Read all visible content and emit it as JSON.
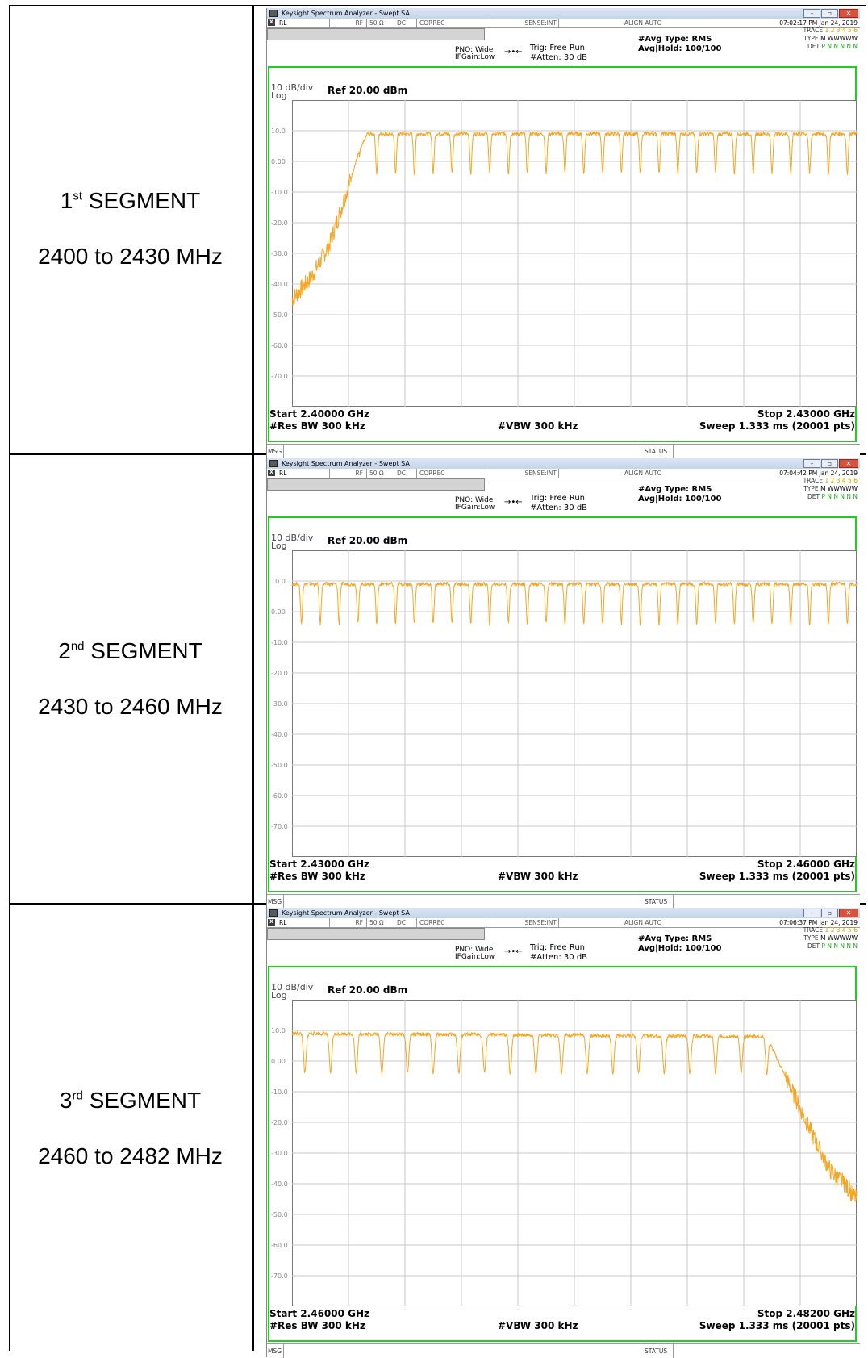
{
  "segments": [
    {
      "label_ordinal": "1",
      "label_suffix": "st",
      "label_word": "SEGMENT",
      "range": "2400 to 2430 MHz",
      "window_title": "Keysight Spectrum Analyzer - Swept SA",
      "status": {
        "rl": "RL",
        "rf": "RF",
        "impedance": "50 Ω",
        "coupling": "DC",
        "correc": "CORREC",
        "sense": "SENSE:INT",
        "align": "ALIGN AUTO",
        "timestamp": "07:02:17 PM Jan 24, 2019"
      },
      "pno": "PNO: Wide",
      "ifgain": "IFGain:Low",
      "trig": "Trig: Free Run",
      "atten": "#Atten: 30 dB",
      "avg_type": "#Avg Type: RMS",
      "avg_hold": "Avg|Hold: 100/100",
      "trace_rows": {
        "trace_label": "TRACE",
        "trace_values": "1 2 3 4 5 6",
        "type_label": "TYPE",
        "type_values": "M WWWWW",
        "det_label": "DET",
        "det_values": "P N N N N N"
      },
      "scale": "10 dB/div",
      "scale_type": "Log",
      "ref_level": "Ref 20.00 dBm",
      "start": "Start 2.40000 GHz",
      "stop": "Stop 2.43000 GHz",
      "rbw": "#Res BW 300 kHz",
      "vbw": "#VBW 300 kHz",
      "sweep": "Sweep  1.333 ms (20001 pts)",
      "msg": "MSG",
      "status_label": "STATUS",
      "chart_data": {
        "type": "line",
        "y_ticks": [
          "10.0",
          "0.00",
          "-10.0",
          "-20.0",
          "-30.0",
          "-40.0",
          "-50.0",
          "-60.0",
          "-70.0"
        ],
        "ylim": [
          -80,
          20
        ],
        "xlim_ghz": [
          2.4,
          2.43
        ],
        "series": [
          {
            "color": "#f5a623",
            "description": "channel comb",
            "x_mhz": [
              2400.0,
              2401.0,
              2402.0,
              2403.0,
              2403.5,
              2404.0,
              2405.0,
              2406.0,
              2407.0,
              2408.0,
              2409.0,
              2410.0,
              2411.0,
              2412.0,
              2413.0,
              2414.0,
              2415.0,
              2416.0,
              2417.0,
              2418.0,
              2419.0,
              2420.0,
              2421.0,
              2422.0,
              2423.0,
              2424.0,
              2425.0,
              2426.0,
              2427.0,
              2428.0,
              2429.0,
              2430.0
            ],
            "y_dbm": [
              -45,
              -38,
              -27,
              -8,
              2,
              9,
              9,
              9,
              9,
              9,
              9,
              9,
              9,
              9,
              9,
              9,
              9,
              9,
              9,
              9,
              9,
              9,
              9,
              9,
              9,
              9,
              9,
              9,
              9,
              9,
              9,
              9
            ],
            "notch_dbm": -4
          }
        ]
      }
    },
    {
      "label_ordinal": "2",
      "label_suffix": "nd",
      "label_word": "SEGMENT",
      "range": "2430 to 2460 MHz",
      "window_title": "Keysight Spectrum Analyzer - Swept SA",
      "status": {
        "rl": "RL",
        "rf": "RF",
        "impedance": "50 Ω",
        "coupling": "DC",
        "correc": "CORREC",
        "sense": "SENSE:INT",
        "align": "ALIGN AUTO",
        "timestamp": "07:04:42 PM Jan 24, 2019"
      },
      "pno": "PNO: Wide",
      "ifgain": "IFGain:Low",
      "trig": "Trig: Free Run",
      "atten": "#Atten: 30 dB",
      "avg_type": "#Avg Type: RMS",
      "avg_hold": "Avg|Hold: 100/100",
      "trace_rows": {
        "trace_label": "TRACE",
        "trace_values": "1 2 3 4 5 6",
        "type_label": "TYPE",
        "type_values": "M WWWWW",
        "det_label": "DET",
        "det_values": "P N N N N N"
      },
      "scale": "10 dB/div",
      "scale_type": "Log",
      "ref_level": "Ref 20.00 dBm",
      "start": "Start 2.43000 GHz",
      "stop": "Stop 2.46000 GHz",
      "rbw": "#Res BW 300 kHz",
      "vbw": "#VBW 300 kHz",
      "sweep": "Sweep  1.333 ms (20001 pts)",
      "msg": "MSG",
      "status_label": "STATUS",
      "chart_data": {
        "type": "line",
        "y_ticks": [
          "10.0",
          "0.00",
          "-10.0",
          "-20.0",
          "-30.0",
          "-40.0",
          "-50.0",
          "-60.0",
          "-70.0"
        ],
        "ylim": [
          -80,
          20
        ],
        "xlim_ghz": [
          2.43,
          2.46
        ],
        "series": [
          {
            "color": "#f5a623",
            "description": "channel comb",
            "x_mhz": [
              2430.0,
              2460.0
            ],
            "y_dbm": [
              9,
              9
            ],
            "notch_dbm": -4
          }
        ]
      }
    },
    {
      "label_ordinal": "3",
      "label_suffix": "rd",
      "label_word": "SEGMENT",
      "range": "2460 to 2482 MHz",
      "window_title": "Keysight Spectrum Analyzer - Swept SA",
      "status": {
        "rl": "RL",
        "rf": "RF",
        "impedance": "50 Ω",
        "coupling": "DC",
        "correc": "CORREC",
        "sense": "SENSE:INT",
        "align": "ALIGN AUTO",
        "timestamp": "07:06:37 PM Jan 24, 2019"
      },
      "pno": "PNO: Wide",
      "ifgain": "IFGain:Low",
      "trig": "Trig: Free Run",
      "atten": "#Atten: 30 dB",
      "avg_type": "#Avg Type: RMS",
      "avg_hold": "Avg|Hold: 100/100",
      "trace_rows": {
        "trace_label": "TRACE",
        "trace_values": "1 2 3 4 5 6",
        "type_label": "TYPE",
        "type_values": "M WWWWW",
        "det_label": "DET",
        "det_values": "P N N N N N"
      },
      "scale": "10 dB/div",
      "scale_type": "Log",
      "ref_level": "Ref 20.00 dBm",
      "start": "Start 2.46000 GHz",
      "stop": "Stop 2.48200 GHz",
      "rbw": "#Res BW 300 kHz",
      "vbw": "#VBW 300 kHz",
      "sweep": "Sweep  1.333 ms (20001 pts)",
      "msg": "MSG",
      "status_label": "STATUS",
      "chart_data": {
        "type": "line",
        "y_ticks": [
          "10.0",
          "0.00",
          "-10.0",
          "-20.0",
          "-30.0",
          "-40.0",
          "-50.0",
          "-60.0",
          "-70.0"
        ],
        "ylim": [
          -80,
          20
        ],
        "xlim_ghz": [
          2.46,
          2.482
        ],
        "series": [
          {
            "color": "#f5a623",
            "description": "channel comb with roll-off",
            "x_mhz": [
              2460.0,
              2478.5,
              2479.5,
              2480.5,
              2481.0,
              2481.5,
              2482.0
            ],
            "y_dbm": [
              9,
              8,
              -10,
              -28,
              -36,
              -40,
              -45
            ],
            "notch_dbm": -4
          }
        ]
      }
    }
  ]
}
